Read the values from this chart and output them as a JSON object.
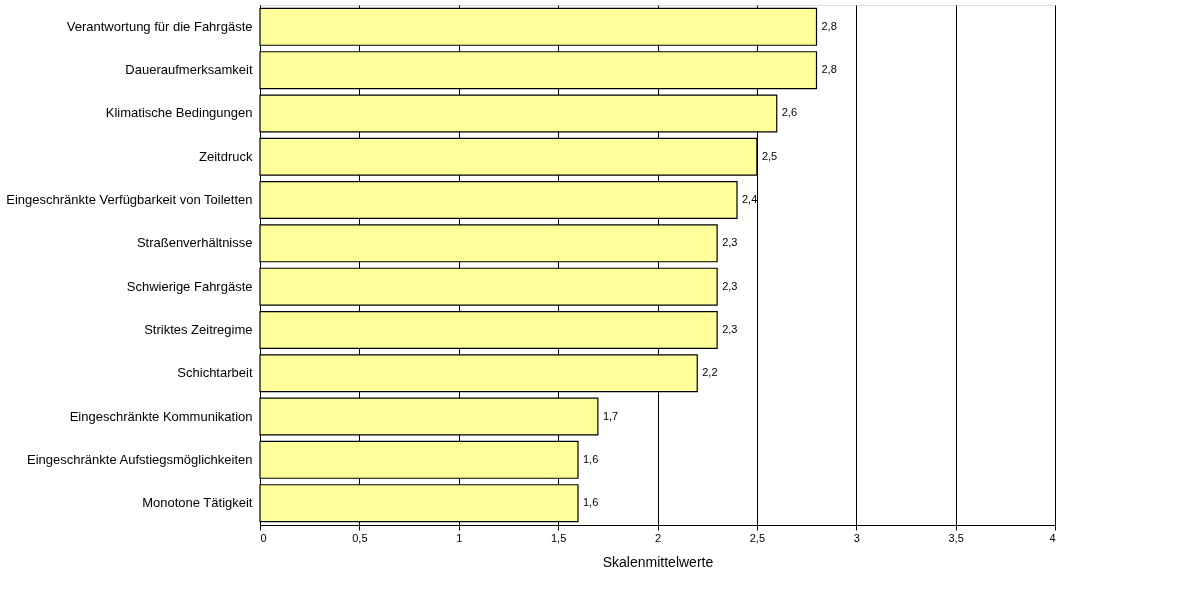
{
  "chart_data": {
    "type": "bar",
    "orientation": "horizontal",
    "xlabel": "Skalenmittelwerte",
    "categories": [
      "Verantwortung für die Fahrgäste",
      "Daueraufmerksamkeit",
      "Klimatische Bedingungen",
      "Zeitdruck",
      "Eingeschränkte Verfügbarkeit von Toiletten",
      "Straßenverhältnisse",
      "Schwierige Fahrgäste",
      "Striktes Zeitregime",
      "Schichtarbeit",
      "Eingeschränkte Kommunikation",
      "Eingeschränkte Aufstiegsmöglichkeiten",
      "Monotone Tätigkeit"
    ],
    "values": [
      2.8,
      2.8,
      2.6,
      2.5,
      2.4,
      2.3,
      2.3,
      2.3,
      2.2,
      1.7,
      1.6,
      1.6
    ],
    "value_labels": [
      "2,8",
      "2,8",
      "2,6",
      "2,5",
      "2,4",
      "2,3",
      "2,3",
      "2,3",
      "2,2",
      "1,7",
      "1,6",
      "1,6"
    ],
    "color": "#ffff99",
    "xlim": [
      0,
      4
    ],
    "xticks": [
      0,
      {
        "value": 0.5,
        "label": "0,5"
      },
      1,
      {
        "value": 1.5,
        "label": "1,5"
      },
      2,
      {
        "value": 2.5,
        "label": "2,5"
      },
      3,
      {
        "value": 3.5,
        "label": "3,5"
      },
      4
    ],
    "grid": "x"
  }
}
